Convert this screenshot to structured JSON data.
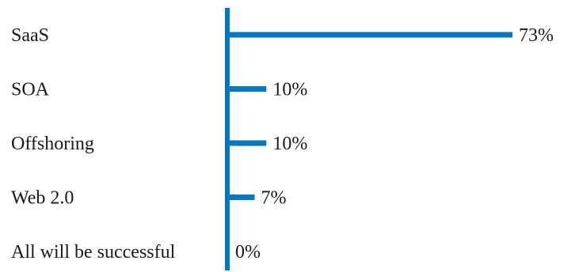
{
  "chart_data": {
    "type": "bar",
    "orientation": "horizontal",
    "categories": [
      "SaaS",
      "SOA",
      "Offshoring",
      "Web 2.0",
      "All will be successful"
    ],
    "values": [
      73,
      10,
      10,
      7,
      0
    ],
    "value_labels": [
      "73%",
      "10%",
      "10%",
      "7%",
      "0%"
    ],
    "title": "",
    "xlabel": "",
    "ylabel": "",
    "xlim": [
      0,
      73
    ],
    "grid": false,
    "legend": "none",
    "bar_color": "#0077c2"
  }
}
